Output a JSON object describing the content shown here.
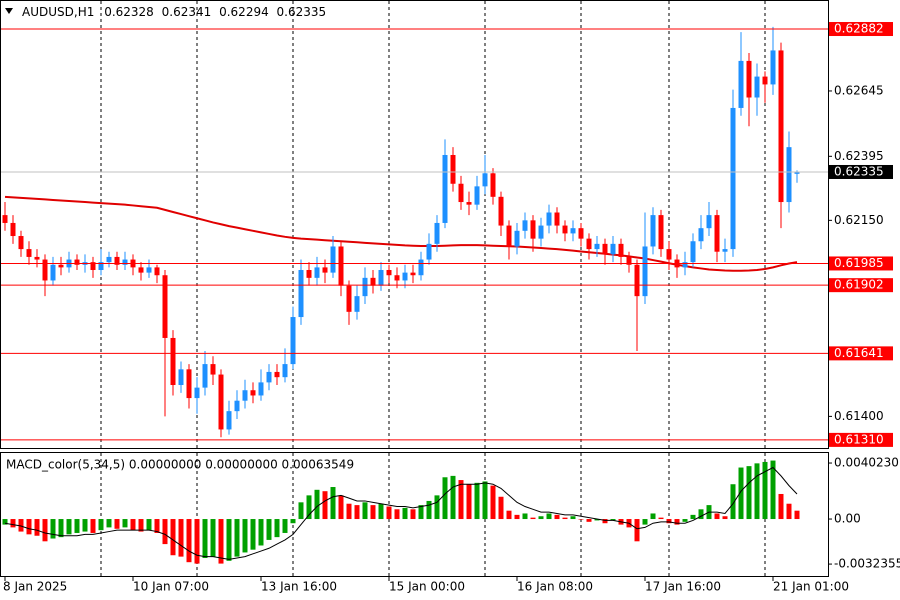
{
  "chart_data": [
    {
      "type": "candlestick",
      "symbol": "AUDUSD,H1",
      "categories": [
        "8 Jan 2025",
        null,
        null,
        null,
        null,
        null,
        null,
        null,
        null,
        null,
        null,
        null,
        null,
        null,
        null,
        null,
        "10 Jan 07:00",
        null,
        null,
        null,
        null,
        null,
        null,
        null,
        null,
        null,
        null,
        null,
        null,
        null,
        null,
        null,
        "13 Jan 16:00",
        null,
        null,
        null,
        null,
        null,
        null,
        null,
        null,
        null,
        null,
        null,
        null,
        null,
        null,
        null,
        "15 Jan 00:00",
        null,
        null,
        null,
        null,
        null,
        null,
        null,
        null,
        null,
        null,
        null,
        null,
        null,
        null,
        null,
        "16 Jan 08:00",
        null,
        null,
        null,
        null,
        null,
        null,
        null,
        null,
        null,
        null,
        null,
        null,
        null,
        null,
        null,
        "17 Jan 16:00",
        null,
        null,
        null,
        null,
        null,
        null,
        null,
        null,
        null,
        null,
        null,
        null,
        null,
        null,
        null,
        "21 Jan 01:00",
        null,
        null,
        null
      ],
      "candles": [
        [
          0.6217,
          0.6222,
          0.6211,
          0.6214
        ],
        [
          0.6214,
          0.6217,
          0.6206,
          0.6209
        ],
        [
          0.6209,
          0.6211,
          0.6201,
          0.6204
        ],
        [
          0.6204,
          0.6207,
          0.6198,
          0.6201
        ],
        [
          0.6201,
          0.6204,
          0.6197,
          0.62
        ],
        [
          0.62,
          0.6202,
          0.6186,
          0.6192
        ],
        [
          0.6192,
          0.6201,
          0.619,
          0.6198
        ],
        [
          0.6198,
          0.6201,
          0.6194,
          0.6197
        ],
        [
          0.6197,
          0.6203,
          0.6195,
          0.62
        ],
        [
          0.62,
          0.6202,
          0.6196,
          0.6198
        ],
        [
          0.6198,
          0.6202,
          0.6195,
          0.6199
        ],
        [
          0.6199,
          0.6201,
          0.6193,
          0.6196
        ],
        [
          0.6196,
          0.6204,
          0.6194,
          0.6199
        ],
        [
          0.6199,
          0.6203,
          0.6197,
          0.6201
        ],
        [
          0.6201,
          0.6203,
          0.6196,
          0.6198
        ],
        [
          0.6198,
          0.6203,
          0.6196,
          0.62
        ],
        [
          0.62,
          0.6202,
          0.6194,
          0.6197
        ],
        [
          0.6197,
          0.6199,
          0.6192,
          0.6195
        ],
        [
          0.6195,
          0.62,
          0.6193,
          0.6197
        ],
        [
          0.6197,
          0.6198,
          0.6191,
          0.6194
        ],
        [
          0.6194,
          0.6196,
          0.614,
          0.617
        ],
        [
          0.617,
          0.6173,
          0.6148,
          0.6152
        ],
        [
          0.6152,
          0.6161,
          0.6149,
          0.6158
        ],
        [
          0.6158,
          0.616,
          0.6143,
          0.6147
        ],
        [
          0.6147,
          0.6155,
          0.6141,
          0.6151
        ],
        [
          0.6151,
          0.6165,
          0.6148,
          0.616
        ],
        [
          0.616,
          0.6163,
          0.6152,
          0.6156
        ],
        [
          0.6156,
          0.6158,
          0.6132,
          0.6135
        ],
        [
          0.6135,
          0.6146,
          0.6133,
          0.6142
        ],
        [
          0.6142,
          0.615,
          0.6139,
          0.6146
        ],
        [
          0.6146,
          0.6154,
          0.6143,
          0.615
        ],
        [
          0.615,
          0.6153,
          0.6145,
          0.6148
        ],
        [
          0.6148,
          0.6158,
          0.6146,
          0.6153
        ],
        [
          0.6153,
          0.616,
          0.615,
          0.6157
        ],
        [
          0.6157,
          0.616,
          0.6152,
          0.6155
        ],
        [
          0.6155,
          0.6166,
          0.6153,
          0.616
        ],
        [
          0.616,
          0.6182,
          0.6158,
          0.6178
        ],
        [
          0.6178,
          0.62,
          0.6175,
          0.6196
        ],
        [
          0.6196,
          0.6199,
          0.619,
          0.6193
        ],
        [
          0.6193,
          0.6201,
          0.619,
          0.6197
        ],
        [
          0.6197,
          0.62,
          0.6191,
          0.6195
        ],
        [
          0.6195,
          0.6209,
          0.6193,
          0.6205
        ],
        [
          0.6205,
          0.6207,
          0.6186,
          0.619
        ],
        [
          0.619,
          0.6192,
          0.6175,
          0.618
        ],
        [
          0.618,
          0.619,
          0.6177,
          0.6186
        ],
        [
          0.6186,
          0.6197,
          0.6183,
          0.6193
        ],
        [
          0.6193,
          0.6196,
          0.6187,
          0.619
        ],
        [
          0.619,
          0.6199,
          0.6188,
          0.6196
        ],
        [
          0.6196,
          0.6198,
          0.6191,
          0.6194
        ],
        [
          0.6194,
          0.6197,
          0.6189,
          0.6192
        ],
        [
          0.6192,
          0.6198,
          0.6189,
          0.6195
        ],
        [
          0.6195,
          0.6198,
          0.6191,
          0.6194
        ],
        [
          0.6194,
          0.6203,
          0.6192,
          0.62
        ],
        [
          0.62,
          0.621,
          0.6198,
          0.6206
        ],
        [
          0.6206,
          0.6217,
          0.6203,
          0.6214
        ],
        [
          0.6214,
          0.6246,
          0.6212,
          0.624
        ],
        [
          0.624,
          0.6243,
          0.6226,
          0.6229
        ],
        [
          0.6229,
          0.6232,
          0.6219,
          0.6222
        ],
        [
          0.6222,
          0.6226,
          0.6217,
          0.6221
        ],
        [
          0.6221,
          0.6232,
          0.6219,
          0.6228
        ],
        [
          0.6228,
          0.624,
          0.6225,
          0.6233
        ],
        [
          0.6233,
          0.6235,
          0.6221,
          0.6224
        ],
        [
          0.6224,
          0.6226,
          0.6209,
          0.6213
        ],
        [
          0.6213,
          0.6215,
          0.62,
          0.6205
        ],
        [
          0.6205,
          0.6214,
          0.6202,
          0.6211
        ],
        [
          0.6211,
          0.6218,
          0.6208,
          0.6215
        ],
        [
          0.6215,
          0.6217,
          0.6203,
          0.6208
        ],
        [
          0.6208,
          0.6216,
          0.6205,
          0.6213
        ],
        [
          0.6213,
          0.6221,
          0.621,
          0.6218
        ],
        [
          0.6218,
          0.622,
          0.621,
          0.6213
        ],
        [
          0.6213,
          0.6215,
          0.6207,
          0.621
        ],
        [
          0.621,
          0.6215,
          0.6207,
          0.6212
        ],
        [
          0.6212,
          0.6214,
          0.6205,
          0.6208
        ],
        [
          0.6208,
          0.621,
          0.62,
          0.6204
        ],
        [
          0.6204,
          0.6209,
          0.6201,
          0.6206
        ],
        [
          0.6206,
          0.6208,
          0.6198,
          0.6202
        ],
        [
          0.6202,
          0.6209,
          0.6199,
          0.6206
        ],
        [
          0.6206,
          0.6208,
          0.6198,
          0.6201
        ],
        [
          0.6201,
          0.6203,
          0.6195,
          0.6198
        ],
        [
          0.6198,
          0.62,
          0.6165,
          0.6186
        ],
        [
          0.6186,
          0.6218,
          0.6183,
          0.6205
        ],
        [
          0.6205,
          0.622,
          0.6202,
          0.6217
        ],
        [
          0.6217,
          0.6219,
          0.6201,
          0.6204
        ],
        [
          0.6204,
          0.6207,
          0.6196,
          0.62
        ],
        [
          0.62,
          0.6202,
          0.6193,
          0.6197
        ],
        [
          0.6197,
          0.6203,
          0.6194,
          0.6199
        ],
        [
          0.6199,
          0.621,
          0.6197,
          0.6207
        ],
        [
          0.6207,
          0.6217,
          0.6204,
          0.6212
        ],
        [
          0.6212,
          0.6222,
          0.6209,
          0.6217
        ],
        [
          0.6217,
          0.6219,
          0.6199,
          0.6203
        ],
        [
          0.6203,
          0.6208,
          0.6199,
          0.6204
        ],
        [
          0.6204,
          0.6265,
          0.6201,
          0.6258
        ],
        [
          0.6258,
          0.6287,
          0.6255,
          0.6276
        ],
        [
          0.6276,
          0.6279,
          0.6251,
          0.6262
        ],
        [
          0.6262,
          0.6275,
          0.6255,
          0.627
        ],
        [
          0.627,
          0.6272,
          0.626,
          0.6267
        ],
        [
          0.6267,
          0.6289,
          0.6263,
          0.628
        ],
        [
          0.628,
          0.6283,
          0.6212,
          0.6222
        ],
        [
          0.6222,
          0.6249,
          0.6218,
          0.6243
        ],
        [
          0.62328,
          0.62341,
          0.62294,
          0.62335
        ]
      ],
      "up_color": "#1e90ff",
      "down_color": "#ff0000",
      "ma": {
        "color": "#e00000",
        "values": [
          0.6224,
          0.62238,
          0.62236,
          0.62234,
          0.62232,
          0.6223,
          0.62228,
          0.62226,
          0.62224,
          0.62222,
          0.6222,
          0.62218,
          0.62216,
          0.62214,
          0.62212,
          0.6221,
          0.62207,
          0.62204,
          0.62201,
          0.62198,
          0.6219,
          0.62182,
          0.62174,
          0.62166,
          0.62158,
          0.6215,
          0.62142,
          0.62135,
          0.62128,
          0.62122,
          0.62116,
          0.6211,
          0.62104,
          0.62098,
          0.62092,
          0.62087,
          0.62083,
          0.6208,
          0.62078,
          0.62076,
          0.62074,
          0.62072,
          0.6207,
          0.62068,
          0.62066,
          0.62064,
          0.62062,
          0.6206,
          0.62058,
          0.62056,
          0.62054,
          0.62053,
          0.62052,
          0.62052,
          0.62052,
          0.62053,
          0.62054,
          0.62055,
          0.62055,
          0.62055,
          0.62054,
          0.62053,
          0.62052,
          0.62051,
          0.6205,
          0.62048,
          0.62046,
          0.62044,
          0.62042,
          0.6204,
          0.62037,
          0.62034,
          0.62031,
          0.62028,
          0.62025,
          0.62022,
          0.62019,
          0.62016,
          0.62012,
          0.62008,
          0.62004,
          0.61998,
          0.61992,
          0.61986,
          0.6198,
          0.61975,
          0.6197,
          0.61966,
          0.61962,
          0.6196,
          0.61958,
          0.61957,
          0.61957,
          0.61958,
          0.6196,
          0.61964,
          0.6197,
          0.61978,
          0.61985,
          0.6199
        ]
      },
      "levels": [
        0.62882,
        0.61985,
        0.61902,
        0.61641,
        {
          "value": 0.6131,
          "label": "0.61310"
        }
      ],
      "level_color": "#ff0000",
      "ylim": [
        0.61279,
        0.62993
      ],
      "yticks": [
        0.62645,
        0.62395,
        {
          "value": 0.6215,
          "label": "0.62150"
        },
        {
          "value": 0.614,
          "label": "0.61400"
        }
      ]
    },
    {
      "type": "macd",
      "title": "MACD_color(5,34,5) 0.00000000 0.00000000 0.00063549",
      "histogram": [
        -0.0004,
        -0.0006,
        -0.0009,
        -0.0011,
        -0.0012,
        -0.0016,
        -0.0014,
        -0.0013,
        -0.0011,
        -0.001,
        -0.0009,
        -0.001,
        -0.0008,
        -0.0006,
        -0.0007,
        -0.0006,
        -0.0008,
        -0.0009,
        -0.0008,
        -0.001,
        -0.0018,
        -0.0026,
        -0.0027,
        -0.0031,
        -0.0032,
        -0.0028,
        -0.0027,
        -0.0032,
        -0.003,
        -0.0027,
        -0.0024,
        -0.0022,
        -0.0019,
        -0.0015,
        -0.0013,
        -0.001,
        -0.0003,
        0.0012,
        0.0017,
        0.0021,
        0.002,
        0.0023,
        0.0017,
        0.0011,
        0.001,
        0.0012,
        0.001,
        0.0011,
        0.0009,
        0.0007,
        0.0008,
        0.0007,
        0.001,
        0.0013,
        0.0017,
        0.003,
        0.0031,
        0.0028,
        0.0025,
        0.0026,
        0.0027,
        0.0024,
        0.0016,
        0.0006,
        0.0003,
        0.0004,
        0.0001,
        0.0002,
        0.0004,
        0.0003,
        0.0001,
        0.0002,
        0,
        -0.0002,
        -0.0001,
        -0.0003,
        -0.0001,
        -0.0004,
        -0.0006,
        -0.0016,
        -0.0004,
        0.0004,
        0.0001,
        -0.0003,
        -0.0004,
        -0.0002,
        0.0003,
        0.0007,
        0.001,
        0.0004,
        0.0002,
        0.0025,
        0.0037,
        0.0038,
        0.004,
        0.0041,
        0.0042,
        0.0018,
        0.0011,
        0.0006
      ],
      "signal": [
        -0.0003,
        -0.0004,
        -0.0005,
        -0.0007,
        -0.0008,
        -0.001,
        -0.0011,
        -0.0012,
        -0.0012,
        -0.0012,
        -0.0011,
        -0.0011,
        -0.001,
        -0.0009,
        -0.0008,
        -0.0008,
        -0.0008,
        -0.0008,
        -0.0008,
        -0.0009,
        -0.0011,
        -0.0015,
        -0.0019,
        -0.0023,
        -0.0026,
        -0.0027,
        -0.0027,
        -0.0028,
        -0.0029,
        -0.0028,
        -0.0027,
        -0.0025,
        -0.0023,
        -0.0021,
        -0.0018,
        -0.0015,
        -0.0011,
        -0.0004,
        0.0003,
        0.0009,
        0.0013,
        0.0016,
        0.0017,
        0.0015,
        0.0013,
        0.0013,
        0.0012,
        0.0011,
        0.001,
        0.0009,
        0.0009,
        0.0008,
        0.0009,
        0.001,
        0.0012,
        0.0018,
        0.0023,
        0.0025,
        0.0025,
        0.0025,
        0.0026,
        0.0025,
        0.0022,
        0.0017,
        0.0012,
        0.0009,
        0.0007,
        0.0005,
        0.0005,
        0.0004,
        0.0003,
        0.0003,
        0.0002,
        0.0001,
        0,
        -0.0001,
        -0.0001,
        -0.0002,
        -0.0003,
        -0.0007,
        -0.0006,
        -0.0003,
        -0.0002,
        -0.0002,
        -0.0003,
        -0.0003,
        -0.0001,
        0.0002,
        0.0005,
        0.0005,
        0.0004,
        0.0011,
        0.002,
        0.0026,
        0.0031,
        0.0034,
        0.0037,
        0.0031,
        0.0024,
        0.0018
      ],
      "up_color": "#00a000",
      "down_color": "#ff0000",
      "signal_color": "#000000",
      "ylim": [
        -0.00402,
        0.0046
      ],
      "yticks": [
        {
          "value": 0.004023,
          "label": "0.0040230"
        },
        {
          "value": 0,
          "label": "0.00"
        },
        -0.0032355
      ]
    }
  ]
}
